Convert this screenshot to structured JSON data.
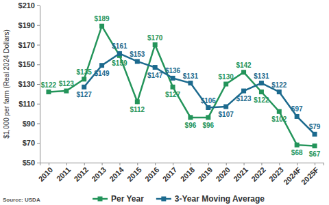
{
  "chart_data": {
    "type": "line",
    "y_label": "$1,000 per farm (Real 2024 Dollars)",
    "source": "Source: USDA",
    "categories": [
      "2010",
      "2011",
      "2012",
      "2013",
      "2014",
      "2015",
      "2016",
      "2017",
      "2018",
      "2019",
      "2020",
      "2021",
      "2022",
      "2023",
      "2024F",
      "2025F"
    ],
    "series": [
      {
        "name": "Per Year",
        "color": "#23945a",
        "marker": "square",
        "line_style": "solid",
        "values": [
          122,
          123,
          135,
          189,
          159,
          112,
          170,
          127,
          96,
          96,
          130,
          142,
          122,
          102,
          68,
          67
        ],
        "value_labels": [
          "$122",
          "$123",
          "$135",
          "$189",
          "$159",
          "$112",
          "$170",
          "$127",
          "$96",
          "$96",
          "$130",
          "$142",
          "$122",
          "$102",
          "$68",
          "$67"
        ]
      },
      {
        "name": "3-Year Moving Average",
        "color": "#1c6a8e",
        "marker": "square",
        "line_style": "solid",
        "values": [
          null,
          null,
          127,
          149,
          161,
          153,
          147,
          136,
          131,
          106,
          107,
          123,
          131,
          122,
          97,
          79
        ],
        "value_labels": [
          null,
          null,
          "$127",
          "$149",
          "$161",
          "$153",
          "$147",
          "$136",
          "$131",
          "$106",
          "$107",
          "$123",
          "$131",
          "$122",
          "$97",
          "$79"
        ]
      }
    ],
    "ylim": [
      50,
      210
    ],
    "yticks": [
      {
        "value": 50,
        "label": "$50"
      },
      {
        "value": 70,
        "label": "$70"
      },
      {
        "value": 90,
        "label": "$90"
      },
      {
        "value": 110,
        "label": "$110"
      },
      {
        "value": 130,
        "label": "$130"
      },
      {
        "value": 150,
        "label": "$150"
      },
      {
        "value": 170,
        "label": "$170"
      },
      {
        "value": 190,
        "label": "$190"
      },
      {
        "value": 210,
        "label": "$210"
      }
    ],
    "grid": false,
    "data_labels": true,
    "legend": "bottom"
  }
}
